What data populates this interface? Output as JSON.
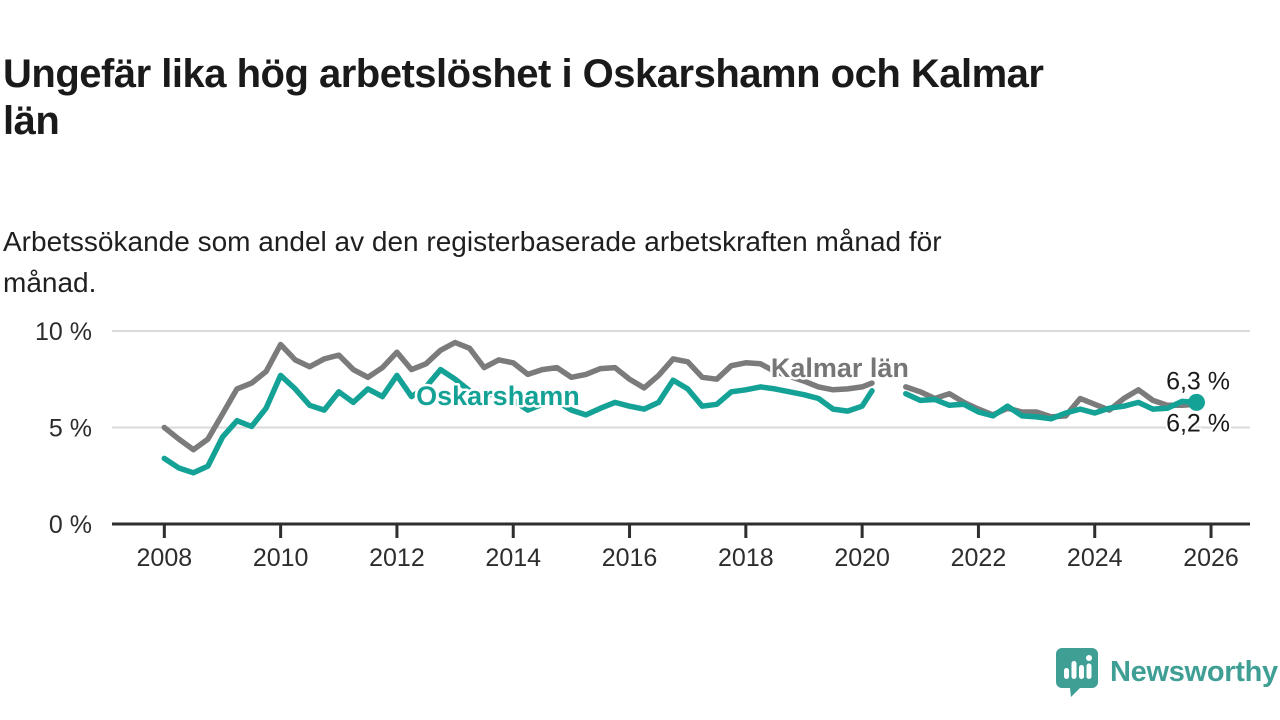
{
  "header": {
    "title": "Ungefär lika hög arbetslöshet i Oskarshamn och Kalmar\nlän",
    "subtitle": "Arbetssökande som andel av den registerbaserade arbetskraften månad för\nmånad."
  },
  "chart_data": {
    "type": "line",
    "title": "Ungefär lika hög arbetslöshet i Oskarshamn och Kalmar län",
    "subtitle": "Arbetssökande som andel av den registerbaserade arbetskraften månad för månad.",
    "unit": "%",
    "grid": "horizontal-only",
    "legend": "inline-labels",
    "xlim": [
      2007.1,
      2026.67
    ],
    "ylim": [
      0,
      10.36
    ],
    "x_ticks": [
      2008,
      2010,
      2012,
      2014,
      2016,
      2018,
      2020,
      2022,
      2024,
      2026
    ],
    "y_ticks": [
      {
        "value": 0,
        "label": "0 %"
      },
      {
        "value": 5,
        "label": "5 %"
      },
      {
        "value": 10,
        "label": "10 %"
      }
    ],
    "data_gap": [
      2020.17,
      2020.75
    ],
    "x": [
      2008.0,
      2008.25,
      2008.5,
      2008.75,
      2009.0,
      2009.25,
      2009.5,
      2009.75,
      2010.0,
      2010.25,
      2010.5,
      2010.75,
      2011.0,
      2011.25,
      2011.5,
      2011.75,
      2012.0,
      2012.25,
      2012.5,
      2012.75,
      2013.0,
      2013.25,
      2013.5,
      2013.75,
      2014.0,
      2014.25,
      2014.5,
      2014.75,
      2015.0,
      2015.25,
      2015.5,
      2015.75,
      2016.0,
      2016.25,
      2016.5,
      2016.75,
      2017.0,
      2017.25,
      2017.5,
      2017.75,
      2018.0,
      2018.25,
      2018.5,
      2018.75,
      2019.0,
      2019.25,
      2019.5,
      2019.75,
      2020.0,
      2020.17,
      2020.5,
      2020.75,
      2021.0,
      2021.25,
      2021.5,
      2021.75,
      2022.0,
      2022.25,
      2022.5,
      2022.75,
      2023.0,
      2023.25,
      2023.5,
      2023.75,
      2024.0,
      2024.25,
      2024.5,
      2024.75,
      2025.0,
      2025.25,
      2025.5,
      2025.75
    ],
    "series": [
      {
        "name": "Kalmar län",
        "color": "#7b7b7b",
        "label_color": "#767676",
        "end_label": "6,2 %",
        "latest_value": 6.2,
        "label_at": [
          2018.43,
          8.08
        ],
        "end_dot": false,
        "values": [
          5.0,
          4.4,
          3.85,
          4.4,
          5.7,
          7.0,
          7.3,
          7.9,
          9.3,
          8.5,
          8.15,
          8.55,
          8.75,
          8.0,
          7.6,
          8.1,
          8.9,
          8.0,
          8.3,
          9.0,
          9.4,
          9.1,
          8.1,
          8.5,
          8.35,
          7.75,
          8.0,
          8.1,
          7.6,
          7.75,
          8.05,
          8.1,
          7.5,
          7.05,
          7.7,
          8.55,
          8.4,
          7.6,
          7.5,
          8.2,
          8.35,
          8.3,
          7.9,
          7.65,
          7.4,
          7.1,
          6.95,
          7.0,
          7.1,
          7.3,
          null,
          7.1,
          6.85,
          6.5,
          6.75,
          6.3,
          5.95,
          5.65,
          6.0,
          5.8,
          5.8,
          5.55,
          5.6,
          6.5,
          6.2,
          5.9,
          6.5,
          6.95,
          6.4,
          6.15,
          6.15,
          6.2
        ]
      },
      {
        "name": "Oskarshamn",
        "color": "#15a296",
        "label_color": "#15a296",
        "end_label": "6,3 %",
        "latest_value": 6.3,
        "label_at": [
          2012.33,
          6.63
        ],
        "end_dot": true,
        "values": [
          3.4,
          2.9,
          2.65,
          3.0,
          4.5,
          5.35,
          5.05,
          6.0,
          7.7,
          7.0,
          6.15,
          5.9,
          6.85,
          6.3,
          7.0,
          6.6,
          7.7,
          6.6,
          7.1,
          8.0,
          7.5,
          6.9,
          6.6,
          6.85,
          6.4,
          5.9,
          6.2,
          6.35,
          5.9,
          5.65,
          6.0,
          6.3,
          6.1,
          5.95,
          6.3,
          7.45,
          7.0,
          6.1,
          6.2,
          6.85,
          6.95,
          7.1,
          7.0,
          6.85,
          6.7,
          6.5,
          5.95,
          5.85,
          6.1,
          6.9,
          null,
          6.75,
          6.4,
          6.45,
          6.15,
          6.2,
          5.8,
          5.6,
          6.1,
          5.6,
          5.55,
          5.45,
          5.75,
          5.95,
          5.75,
          6.0,
          6.1,
          6.3,
          5.95,
          6.0,
          6.35,
          6.3
        ]
      }
    ]
  },
  "footer": {
    "brand": "Newsworthy",
    "brand_color": "#3f9f95",
    "logo_icon": "bar-chart-speech-bubble-icon"
  }
}
